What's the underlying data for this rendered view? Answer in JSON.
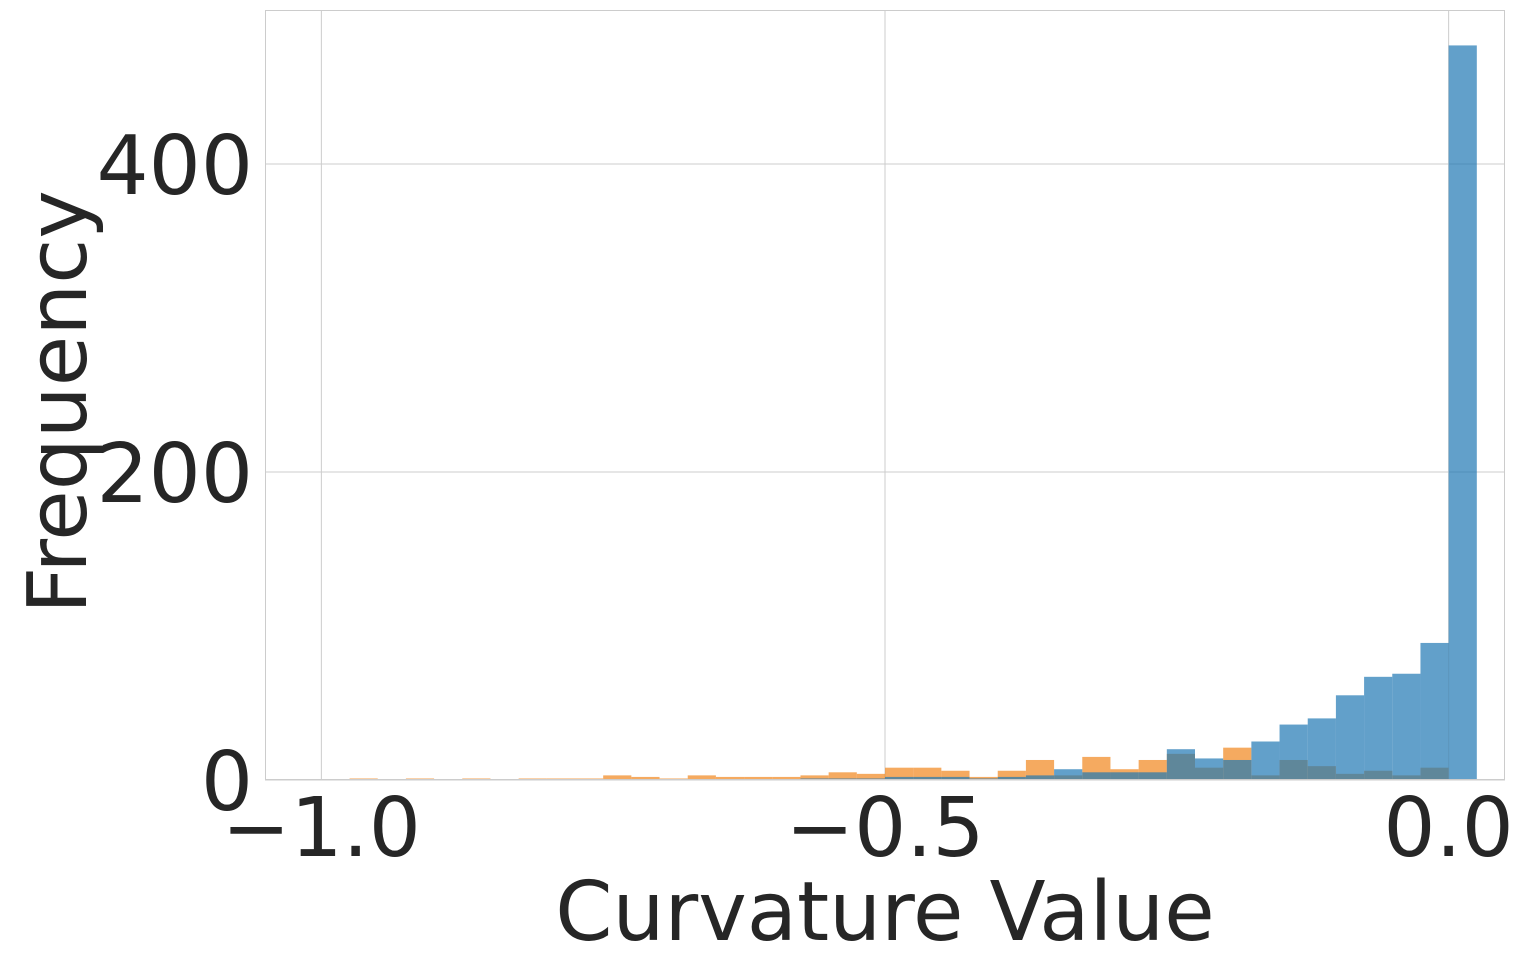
{
  "chart_data": {
    "type": "bar",
    "subtype": "overlapping-histogram",
    "title": "",
    "xlabel": "Curvature Value",
    "ylabel": "Frequency",
    "xlim": [
      -1.05,
      0.05
    ],
    "ylim": [
      0,
      500
    ],
    "xticks": [
      -1.0,
      -0.5,
      0.0
    ],
    "xtick_labels": [
      "−1.0",
      "−0.5",
      "0.0"
    ],
    "yticks": [
      0,
      200,
      400
    ],
    "ytick_labels": [
      "0",
      "200",
      "400"
    ],
    "grid": true,
    "legend": "none",
    "bin_width": 0.025,
    "series": [
      {
        "color": "#f28e2b",
        "opacity": 0.75,
        "bins": [
          {
            "x0": -0.975,
            "x1": -0.95,
            "value": 1
          },
          {
            "x0": -0.925,
            "x1": -0.9,
            "value": 1
          },
          {
            "x0": -0.875,
            "x1": -0.85,
            "value": 1
          },
          {
            "x0": -0.825,
            "x1": -0.8,
            "value": 1
          },
          {
            "x0": -0.8,
            "x1": -0.775,
            "value": 1
          },
          {
            "x0": -0.775,
            "x1": -0.75,
            "value": 1
          },
          {
            "x0": -0.75,
            "x1": -0.725,
            "value": 3
          },
          {
            "x0": -0.725,
            "x1": -0.7,
            "value": 2
          },
          {
            "x0": -0.7,
            "x1": -0.675,
            "value": 1
          },
          {
            "x0": -0.675,
            "x1": -0.65,
            "value": 3
          },
          {
            "x0": -0.65,
            "x1": -0.625,
            "value": 2
          },
          {
            "x0": -0.625,
            "x1": -0.6,
            "value": 2
          },
          {
            "x0": -0.6,
            "x1": -0.575,
            "value": 2
          },
          {
            "x0": -0.575,
            "x1": -0.55,
            "value": 3
          },
          {
            "x0": -0.55,
            "x1": -0.525,
            "value": 5
          },
          {
            "x0": -0.525,
            "x1": -0.5,
            "value": 4
          },
          {
            "x0": -0.5,
            "x1": -0.475,
            "value": 8
          },
          {
            "x0": -0.475,
            "x1": -0.45,
            "value": 8
          },
          {
            "x0": -0.45,
            "x1": -0.425,
            "value": 6
          },
          {
            "x0": -0.425,
            "x1": -0.4,
            "value": 2
          },
          {
            "x0": -0.4,
            "x1": -0.375,
            "value": 6
          },
          {
            "x0": -0.375,
            "x1": -0.35,
            "value": 13
          },
          {
            "x0": -0.35,
            "x1": -0.325,
            "value": 3
          },
          {
            "x0": -0.325,
            "x1": -0.3,
            "value": 15
          },
          {
            "x0": -0.3,
            "x1": -0.275,
            "value": 7
          },
          {
            "x0": -0.275,
            "x1": -0.25,
            "value": 13
          },
          {
            "x0": -0.25,
            "x1": -0.225,
            "value": 17
          },
          {
            "x0": -0.225,
            "x1": -0.2,
            "value": 8
          },
          {
            "x0": -0.2,
            "x1": -0.175,
            "value": 21
          },
          {
            "x0": -0.175,
            "x1": -0.15,
            "value": 3
          },
          {
            "x0": -0.15,
            "x1": -0.125,
            "value": 13
          },
          {
            "x0": -0.125,
            "x1": -0.1,
            "value": 9
          },
          {
            "x0": -0.1,
            "x1": -0.075,
            "value": 4
          },
          {
            "x0": -0.075,
            "x1": -0.05,
            "value": 6
          },
          {
            "x0": -0.05,
            "x1": -0.025,
            "value": 3
          },
          {
            "x0": -0.025,
            "x1": 0.0,
            "value": 8
          }
        ]
      },
      {
        "color": "#1f77b4",
        "opacity": 0.7,
        "bins": [
          {
            "x0": -0.575,
            "x1": -0.55,
            "value": 1
          },
          {
            "x0": -0.55,
            "x1": -0.525,
            "value": 1
          },
          {
            "x0": -0.525,
            "x1": -0.5,
            "value": 1
          },
          {
            "x0": -0.5,
            "x1": -0.475,
            "value": 2
          },
          {
            "x0": -0.475,
            "x1": -0.45,
            "value": 2
          },
          {
            "x0": -0.45,
            "x1": -0.425,
            "value": 2
          },
          {
            "x0": -0.425,
            "x1": -0.4,
            "value": 1
          },
          {
            "x0": -0.4,
            "x1": -0.375,
            "value": 2
          },
          {
            "x0": -0.375,
            "x1": -0.35,
            "value": 3
          },
          {
            "x0": -0.35,
            "x1": -0.325,
            "value": 7
          },
          {
            "x0": -0.325,
            "x1": -0.3,
            "value": 5
          },
          {
            "x0": -0.3,
            "x1": -0.275,
            "value": 5
          },
          {
            "x0": -0.275,
            "x1": -0.25,
            "value": 5
          },
          {
            "x0": -0.25,
            "x1": -0.225,
            "value": 20
          },
          {
            "x0": -0.225,
            "x1": -0.2,
            "value": 14
          },
          {
            "x0": -0.2,
            "x1": -0.175,
            "value": 13
          },
          {
            "x0": -0.175,
            "x1": -0.15,
            "value": 25
          },
          {
            "x0": -0.15,
            "x1": -0.125,
            "value": 36
          },
          {
            "x0": -0.125,
            "x1": -0.1,
            "value": 40
          },
          {
            "x0": -0.1,
            "x1": -0.075,
            "value": 55
          },
          {
            "x0": -0.075,
            "x1": -0.05,
            "value": 67
          },
          {
            "x0": -0.05,
            "x1": -0.025,
            "value": 69
          },
          {
            "x0": -0.025,
            "x1": 0.0,
            "value": 89
          },
          {
            "x0": 0.0,
            "x1": 0.025,
            "value": 477
          }
        ]
      }
    ]
  }
}
